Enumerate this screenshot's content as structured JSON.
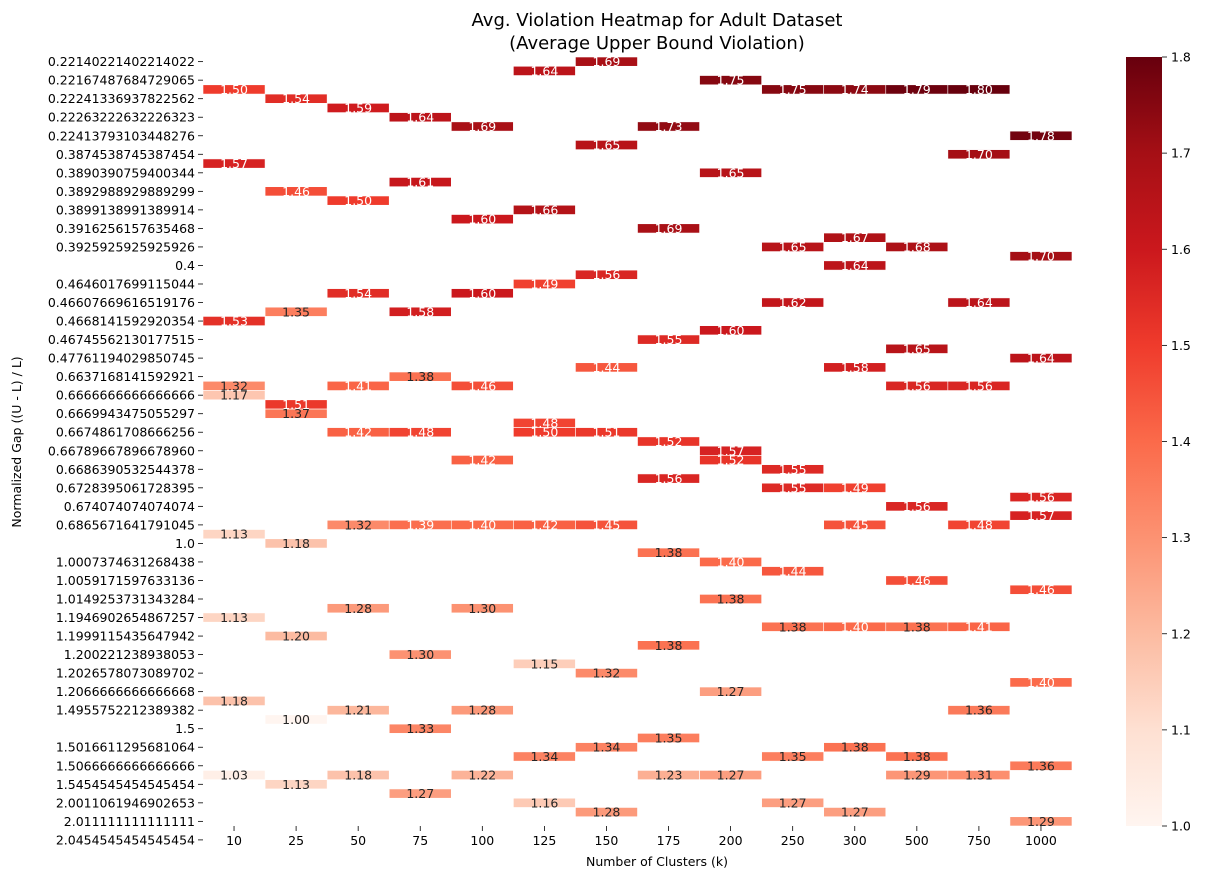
{
  "chart_data": {
    "type": "heatmap",
    "title": "Avg. Violation Heatmap for Adult Dataset",
    "subtitle": "(Average Upper Bound Violation)",
    "xlabel": "Number of Clusters (k)",
    "ylabel": "Normalized Gap ((U - L) / L)",
    "colormap": "Reds",
    "colorbar_range": [
      1.0,
      1.8
    ],
    "colorbar_ticks": [
      "1.0",
      "1.1",
      "1.2",
      "1.3",
      "1.4",
      "1.5",
      "1.6",
      "1.7",
      "1.8"
    ],
    "x_categories": [
      "10",
      "25",
      "50",
      "75",
      "100",
      "125",
      "150",
      "175",
      "200",
      "250",
      "300",
      "500",
      "750",
      "1000"
    ],
    "y_tick_labels": [
      "0.22140221402214022",
      "0.22167487684729065",
      "0.22241336937822562",
      "0.22263222632226323",
      "0.22413793103448276",
      "0.3874538745387454",
      "0.3890390759400344",
      "0.3892988929889299",
      "0.3899138991389914",
      "0.3916256157635468",
      "0.3925925925925926",
      "0.4",
      "0.4646017699115044",
      "0.46607669616519176",
      "0.4668141592920354",
      "0.46745562130177515",
      "0.47761194029850745",
      "0.6637168141592921",
      "0.6666666666666666",
      "0.6669943475055297",
      "0.6674861708666256",
      "0.66789667896678960",
      "0.6686390532544378",
      "0.6728395061728395",
      "0.674074074074074",
      "0.6865671641791045",
      "1.0",
      "1.0007374631268438",
      "1.0059171597633136",
      "1.0149253731343284",
      "1.1946902654867257",
      "1.1999115435647942",
      "1.200221238938053",
      "1.2026578073089702",
      "1.2066666666666668",
      "1.4955752212389382",
      "1.5",
      "1.5016611295681064",
      "1.5066666666666666",
      "1.5454545454545454",
      "2.0011061946902653",
      "2.011111111111111",
      "2.0454545454545454"
    ],
    "cells": [
      {
        "row": 0,
        "col": 6,
        "value": 1.69
      },
      {
        "row": 1,
        "col": 5,
        "value": 1.64
      },
      {
        "row": 2,
        "col": 8,
        "value": 1.75
      },
      {
        "row": 3,
        "col": 0,
        "value": 1.5
      },
      {
        "row": 3,
        "col": 9,
        "value": 1.75
      },
      {
        "row": 3,
        "col": 10,
        "value": 1.74
      },
      {
        "row": 3,
        "col": 11,
        "value": 1.79
      },
      {
        "row": 3,
        "col": 12,
        "value": 1.8
      },
      {
        "row": 4,
        "col": 1,
        "value": 1.54
      },
      {
        "row": 5,
        "col": 2,
        "value": 1.59
      },
      {
        "row": 6,
        "col": 3,
        "value": 1.64
      },
      {
        "row": 7,
        "col": 4,
        "value": 1.69
      },
      {
        "row": 7,
        "col": 7,
        "value": 1.73
      },
      {
        "row": 8,
        "col": 13,
        "value": 1.78
      },
      {
        "row": 9,
        "col": 6,
        "value": 1.65
      },
      {
        "row": 10,
        "col": 12,
        "value": 1.7
      },
      {
        "row": 11,
        "col": 0,
        "value": 1.57
      },
      {
        "row": 12,
        "col": 8,
        "value": 1.65
      },
      {
        "row": 13,
        "col": 3,
        "value": 1.61
      },
      {
        "row": 14,
        "col": 1,
        "value": 1.46
      },
      {
        "row": 15,
        "col": 2,
        "value": 1.5
      },
      {
        "row": 16,
        "col": 5,
        "value": 1.66
      },
      {
        "row": 17,
        "col": 4,
        "value": 1.6
      },
      {
        "row": 18,
        "col": 7,
        "value": 1.69
      },
      {
        "row": 19,
        "col": 10,
        "value": 1.67
      },
      {
        "row": 20,
        "col": 9,
        "value": 1.65
      },
      {
        "row": 20,
        "col": 11,
        "value": 1.68
      },
      {
        "row": 21,
        "col": 13,
        "value": 1.7
      },
      {
        "row": 22,
        "col": 10,
        "value": 1.64
      },
      {
        "row": 23,
        "col": 6,
        "value": 1.56
      },
      {
        "row": 24,
        "col": 5,
        "value": 1.49
      },
      {
        "row": 25,
        "col": 2,
        "value": 1.54
      },
      {
        "row": 25,
        "col": 4,
        "value": 1.6
      },
      {
        "row": 26,
        "col": 9,
        "value": 1.62
      },
      {
        "row": 26,
        "col": 12,
        "value": 1.64
      },
      {
        "row": 27,
        "col": 1,
        "value": 1.35
      },
      {
        "row": 27,
        "col": 3,
        "value": 1.58
      },
      {
        "row": 28,
        "col": 0,
        "value": 1.53
      },
      {
        "row": 29,
        "col": 8,
        "value": 1.6
      },
      {
        "row": 30,
        "col": 7,
        "value": 1.55
      },
      {
        "row": 31,
        "col": 11,
        "value": 1.65
      },
      {
        "row": 32,
        "col": 13,
        "value": 1.64
      },
      {
        "row": 33,
        "col": 10,
        "value": 1.58
      },
      {
        "row": 33,
        "col": 6,
        "value": 1.44
      },
      {
        "row": 34,
        "col": 3,
        "value": 1.38
      },
      {
        "row": 35,
        "col": 0,
        "value": 1.32
      },
      {
        "row": 35,
        "col": 2,
        "value": 1.41
      },
      {
        "row": 35,
        "col": 4,
        "value": 1.46
      },
      {
        "row": 35,
        "col": 11,
        "value": 1.56
      },
      {
        "row": 35,
        "col": 12,
        "value": 1.56
      },
      {
        "row": 36,
        "col": 0,
        "value": 1.17
      },
      {
        "row": 37,
        "col": 1,
        "value": 1.51
      },
      {
        "row": 38,
        "col": 1,
        "value": 1.37
      },
      {
        "row": 39,
        "col": 5,
        "value": 1.48
      },
      {
        "row": 40,
        "col": 2,
        "value": 1.42
      },
      {
        "row": 40,
        "col": 3,
        "value": 1.48
      },
      {
        "row": 40,
        "col": 5,
        "value": 1.5
      },
      {
        "row": 40,
        "col": 6,
        "value": 1.51
      },
      {
        "row": 41,
        "col": 7,
        "value": 1.52
      },
      {
        "row": 42,
        "col": 8,
        "value": 1.57
      },
      {
        "row": 43,
        "col": 4,
        "value": 1.42
      },
      {
        "row": 43,
        "col": 8,
        "value": 1.52
      },
      {
        "row": 44,
        "col": 9,
        "value": 1.55
      },
      {
        "row": 45,
        "col": 7,
        "value": 1.56
      },
      {
        "row": 46,
        "col": 9,
        "value": 1.55
      },
      {
        "row": 46,
        "col": 10,
        "value": 1.49
      },
      {
        "row": 47,
        "col": 13,
        "value": 1.56
      },
      {
        "row": 48,
        "col": 11,
        "value": 1.56
      },
      {
        "row": 49,
        "col": 13,
        "value": 1.57
      },
      {
        "row": 50,
        "col": 2,
        "value": 1.32
      },
      {
        "row": 50,
        "col": 3,
        "value": 1.39
      },
      {
        "row": 50,
        "col": 4,
        "value": 1.4
      },
      {
        "row": 50,
        "col": 5,
        "value": 1.42
      },
      {
        "row": 50,
        "col": 6,
        "value": 1.45
      },
      {
        "row": 50,
        "col": 10,
        "value": 1.45
      },
      {
        "row": 50,
        "col": 12,
        "value": 1.48
      },
      {
        "row": 51,
        "col": 0,
        "value": 1.13
      },
      {
        "row": 52,
        "col": 1,
        "value": 1.18
      },
      {
        "row": 53,
        "col": 7,
        "value": 1.38
      },
      {
        "row": 54,
        "col": 8,
        "value": 1.4
      },
      {
        "row": 55,
        "col": 9,
        "value": 1.44
      },
      {
        "row": 56,
        "col": 11,
        "value": 1.46
      },
      {
        "row": 57,
        "col": 13,
        "value": 1.46
      },
      {
        "row": 58,
        "col": 8,
        "value": 1.38
      },
      {
        "row": 59,
        "col": 2,
        "value": 1.28
      },
      {
        "row": 59,
        "col": 4,
        "value": 1.3
      },
      {
        "row": 60,
        "col": 0,
        "value": 1.13
      },
      {
        "row": 61,
        "col": 9,
        "value": 1.38
      },
      {
        "row": 61,
        "col": 10,
        "value": 1.4
      },
      {
        "row": 61,
        "col": 11,
        "value": 1.38
      },
      {
        "row": 61,
        "col": 12,
        "value": 1.41
      },
      {
        "row": 62,
        "col": 1,
        "value": 1.2
      },
      {
        "row": 63,
        "col": 7,
        "value": 1.38
      },
      {
        "row": 64,
        "col": 3,
        "value": 1.3
      },
      {
        "row": 65,
        "col": 5,
        "value": 1.15
      },
      {
        "row": 66,
        "col": 6,
        "value": 1.32
      },
      {
        "row": 67,
        "col": 13,
        "value": 1.4
      },
      {
        "row": 68,
        "col": 8,
        "value": 1.27
      },
      {
        "row": 69,
        "col": 0,
        "value": 1.18
      },
      {
        "row": 70,
        "col": 2,
        "value": 1.21
      },
      {
        "row": 70,
        "col": 4,
        "value": 1.28
      },
      {
        "row": 70,
        "col": 12,
        "value": 1.36
      },
      {
        "row": 71,
        "col": 1,
        "value": 1.0
      },
      {
        "row": 72,
        "col": 3,
        "value": 1.33
      },
      {
        "row": 73,
        "col": 7,
        "value": 1.35
      },
      {
        "row": 74,
        "col": 6,
        "value": 1.34
      },
      {
        "row": 74,
        "col": 10,
        "value": 1.38
      },
      {
        "row": 75,
        "col": 5,
        "value": 1.34
      },
      {
        "row": 75,
        "col": 9,
        "value": 1.35
      },
      {
        "row": 75,
        "col": 11,
        "value": 1.38
      },
      {
        "row": 76,
        "col": 13,
        "value": 1.36
      },
      {
        "row": 77,
        "col": 0,
        "value": 1.03
      },
      {
        "row": 77,
        "col": 2,
        "value": 1.18
      },
      {
        "row": 77,
        "col": 4,
        "value": 1.22
      },
      {
        "row": 77,
        "col": 7,
        "value": 1.23
      },
      {
        "row": 77,
        "col": 8,
        "value": 1.27
      },
      {
        "row": 77,
        "col": 11,
        "value": 1.29
      },
      {
        "row": 77,
        "col": 12,
        "value": 1.31
      },
      {
        "row": 78,
        "col": 1,
        "value": 1.13
      },
      {
        "row": 79,
        "col": 3,
        "value": 1.27
      },
      {
        "row": 80,
        "col": 5,
        "value": 1.16
      },
      {
        "row": 80,
        "col": 9,
        "value": 1.27
      },
      {
        "row": 81,
        "col": 6,
        "value": 1.28
      },
      {
        "row": 81,
        "col": 10,
        "value": 1.27
      },
      {
        "row": 82,
        "col": 13,
        "value": 1.29
      }
    ]
  }
}
